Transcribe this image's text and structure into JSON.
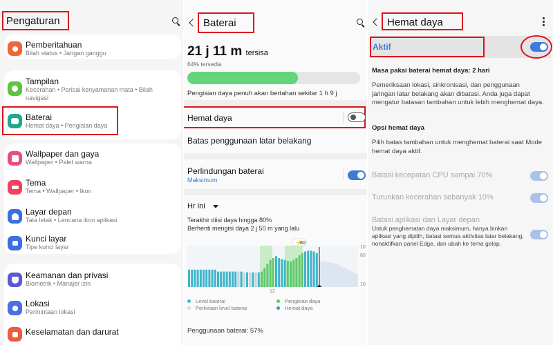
{
  "settings": {
    "title": "Pengaturan",
    "search_icon": "search-icon",
    "items": [
      {
        "title": "Pemberitahuan",
        "subtitle": "Bilah status  •  Jangan ganggu",
        "color": "#f2643a",
        "icon": "notification-icon"
      },
      {
        "title": "Tampilan",
        "subtitle": "Kecerahan  •  Perisai kenyamanan mata  •  Bilah navigasi",
        "color": "#5cc43f",
        "icon": "brightness-icon"
      },
      {
        "title": "Baterai",
        "subtitle": "Hemat daya  •  Pengisian daya",
        "color": "#1fa88f",
        "icon": "battery-icon"
      },
      {
        "title": "Wallpaper dan gaya",
        "subtitle": "Wallpaper  •  Palet warna",
        "color": "#ec4e7a",
        "icon": "wallpaper-icon"
      },
      {
        "title": "Tema",
        "subtitle": "Tema  •  Wallpaper  •  Ikon",
        "color": "#ee4360",
        "icon": "theme-icon"
      },
      {
        "title": "Layar depan",
        "subtitle": "Tata letak  •  Lencana ikon aplikasi",
        "color": "#3c6ee0",
        "icon": "home-screen-icon"
      },
      {
        "title": "Kunci layar",
        "subtitle": "Tipe kunci layar",
        "color": "#3c6ee0",
        "icon": "lock-icon"
      },
      {
        "title": "Keamanan dan privasi",
        "subtitle": "Biometrik  •  Manajer izin",
        "color": "#5a5ad6",
        "icon": "shield-icon"
      },
      {
        "title": "Lokasi",
        "subtitle": "Permintaan lokasi",
        "color": "#4a6fe0",
        "icon": "location-icon"
      },
      {
        "title": "Keselamatan dan darurat",
        "subtitle": "",
        "color": "#f05a3c",
        "icon": "emergency-icon"
      }
    ]
  },
  "battery": {
    "title": "Baterai",
    "time_remaining": "21 j 11 m",
    "time_suffix": "tersisa",
    "percent_available": "64% tersedia",
    "level_fraction": 0.64,
    "charge_estimate": "Pengisian daya penuh akan bertahan sekitar 1 h 9 j",
    "power_saving_label": "Hemat daya",
    "power_saving_on": false,
    "background_limits_label": "Batas penggunaan latar belakang",
    "protection_label": "Perlindungan baterai",
    "protection_value": "Maksimum",
    "protection_on": true,
    "period_label": "Hr ini",
    "last_charge": "Terakhir diisi daya hingga 80%",
    "stopped_charging": "Berhenti mengisi daya 2 j 50 m yang lalu",
    "chart_peak_label": "80",
    "chart_axis_labels": [
      "10",
      "80",
      "12",
      "10"
    ],
    "legend": [
      {
        "label": "Level baterai",
        "color": "#3fb5c9"
      },
      {
        "label": "Perkiraan level baterai",
        "color": "#cfdbe8"
      },
      {
        "label": "Pengisian daya",
        "color": "#5ec86a"
      },
      {
        "label": "Hemat daya",
        "color": "#2fa1b8"
      }
    ],
    "usage_label": "Penggunaan baterai: 57%"
  },
  "power_saving": {
    "title": "Hemat daya",
    "active_label": "Aktif",
    "active_on": true,
    "duration_label": "Masa pakai baterai hemat daya: 2 hari",
    "description": "Pemeriksaan lokasi, sinkronisasi, dan penggunaan jaringan latar belakang akan dibatasi. Anda juga dapat mengatur batasan tambahan untuk lebih menghemat daya.",
    "options_heading": "Opsi hemat daya",
    "options_desc": "Pilih batas tambahan untuk menghemat baterai saat Mode hemat daya aktif.",
    "option_cpu": "Batasi kecepatan CPU sampai 70%",
    "option_brightness": "Turunkan kecerahan sebanyak 10%",
    "option_apps": "Batasi aplikasi dan Layar depan",
    "option_apps_desc": "Untuk penghematan daya maksimum, hanya binkan aplikasi yang dipilih, batasi semua aktivitas latar belakang, nonaktifkan panel Edge, dan ubah ke tema gelap."
  },
  "colors": {
    "highlight": "#d9151d",
    "accent": "#3e7ad8",
    "charge_green": "#63d47a"
  }
}
